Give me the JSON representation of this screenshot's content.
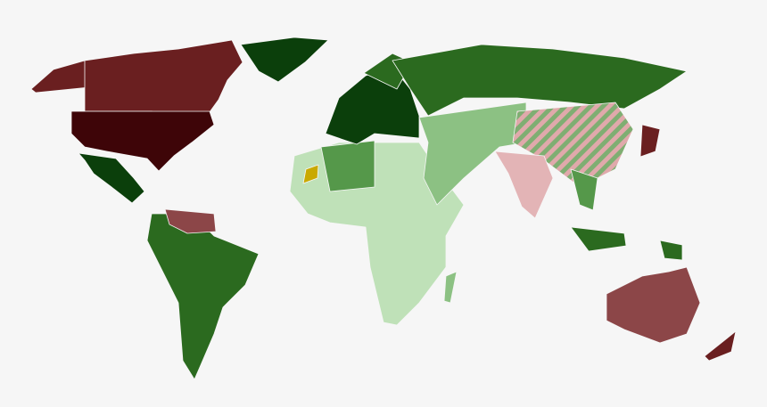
{
  "map": {
    "background": "#f6f6f6",
    "palette": {
      "green_darkest": "#0b3f0b",
      "green_dark": "#2b6a1f",
      "green_medium": "#55984a",
      "green_light": "#8cc183",
      "green_lightest": "#bfe1b8",
      "red_darkest": "#3e0508",
      "red_dark": "#6a1f20",
      "red_medium": "#8c4648",
      "red_light": "#b86e72",
      "red_lightest": "#e3b4b6",
      "yellow": "#c9a900",
      "hatch_green": "#7fae72",
      "hatch_pink": "#e0a9ab"
    },
    "regions": [
      {
        "id": "alaska",
        "fill": "red_dark"
      },
      {
        "id": "canada",
        "fill": "red_dark"
      },
      {
        "id": "usa",
        "fill": "red_darkest"
      },
      {
        "id": "greenland",
        "fill": "green_darkest"
      },
      {
        "id": "mexico-central-america",
        "fill": "green_darkest"
      },
      {
        "id": "south-america",
        "fill": "green_dark"
      },
      {
        "id": "venezuela-guyana",
        "fill": "red_medium"
      },
      {
        "id": "africa",
        "fill": "green_lightest"
      },
      {
        "id": "north-africa",
        "fill": "green_medium"
      },
      {
        "id": "western-sahara",
        "fill": "yellow"
      },
      {
        "id": "europe",
        "fill": "green_darkest"
      },
      {
        "id": "scandinavia",
        "fill": "green_dark"
      },
      {
        "id": "russia",
        "fill": "green_dark"
      },
      {
        "id": "middle-east-central-asia",
        "fill": "green_light"
      },
      {
        "id": "china",
        "fill": "hatch"
      },
      {
        "id": "india",
        "fill": "red_lightest"
      },
      {
        "id": "southeast-asia",
        "fill": "green_medium"
      },
      {
        "id": "japan",
        "fill": "red_dark"
      },
      {
        "id": "indonesia",
        "fill": "green_dark"
      },
      {
        "id": "papua-new-guinea",
        "fill": "green_dark"
      },
      {
        "id": "australia",
        "fill": "red_medium"
      },
      {
        "id": "new-zealand",
        "fill": "red_dark"
      },
      {
        "id": "madagascar",
        "fill": "green_light"
      }
    ]
  }
}
